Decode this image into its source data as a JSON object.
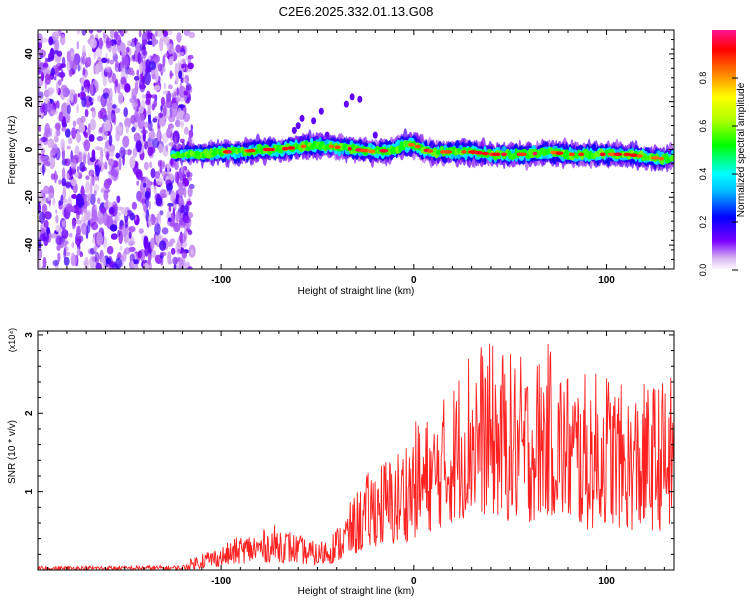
{
  "title": "C2E6.2025.332.01.13.G08",
  "chart_data": [
    {
      "type": "heatmap",
      "name": "spectrogram",
      "xlabel": "Height of straight line (km)",
      "ylabel": "Frequency (Hz)",
      "xlim": [
        -195,
        135
      ],
      "ylim": [
        -50,
        50
      ],
      "xticks": [
        -100,
        0,
        100
      ],
      "xtick_labels": [
        "-100",
        "0",
        "100"
      ],
      "yticks": [
        -40,
        -20,
        0,
        20,
        40
      ],
      "ytick_labels": [
        "-40",
        "-20",
        "0",
        "20",
        "40"
      ],
      "noise_region_x": [
        -195,
        -115
      ],
      "ridge": {
        "x": [
          -125,
          -110,
          -100,
          -90,
          -80,
          -70,
          -60,
          -50,
          -40,
          -30,
          -20,
          -10,
          -5,
          0,
          5,
          10,
          20,
          30,
          40,
          50,
          60,
          70,
          80,
          90,
          100,
          110,
          120,
          130,
          135
        ],
        "frequency_hz": [
          -2,
          -2,
          -1,
          -1,
          0,
          0,
          1,
          2,
          1,
          0,
          -1,
          0,
          2,
          2,
          0,
          -1,
          -1,
          -1,
          -2,
          -2,
          -2,
          -1,
          -2,
          -2,
          -2,
          -2,
          -3,
          -4,
          -3
        ]
      },
      "colorbar": {
        "label": "Normalized spectral amplitude",
        "range": [
          0,
          1
        ],
        "ticks": [
          0.0,
          0.2,
          0.4,
          0.6,
          0.8
        ],
        "tick_labels": [
          "0.0",
          "0.2",
          "0.4",
          "0.6",
          "0.8"
        ],
        "colors": [
          "#ffffff",
          "#d8b4f0",
          "#7b00ff",
          "#0000ff",
          "#00bfff",
          "#00ffff",
          "#00ff00",
          "#aaff00",
          "#ffff00",
          "#ff8000",
          "#ff0000",
          "#ff1493"
        ]
      }
    },
    {
      "type": "line",
      "name": "snr",
      "xlabel": "Height of straight line (km)",
      "ylabel": "SNR (10 * v/v)",
      "ylabel_multiplier": "(x10⁴)",
      "xlim": [
        -195,
        135
      ],
      "ylim": [
        0,
        3.05
      ],
      "xticks": [
        -100,
        0,
        100
      ],
      "xtick_labels": [
        "-100",
        "0",
        "100"
      ],
      "yticks": [
        1,
        2,
        3
      ],
      "ytick_labels": [
        "1",
        "2",
        "3"
      ],
      "color": "#ff2020",
      "envelope": {
        "x": [
          -195,
          -120,
          -110,
          -100,
          -90,
          -80,
          -70,
          -60,
          -50,
          -40,
          -30,
          -20,
          -10,
          0,
          10,
          20,
          30,
          40,
          50,
          60,
          70,
          80,
          90,
          100,
          110,
          120,
          135
        ],
        "upper": [
          0.05,
          0.06,
          0.25,
          0.3,
          0.45,
          0.5,
          0.6,
          0.45,
          0.35,
          0.55,
          1.0,
          1.4,
          1.5,
          1.9,
          2.0,
          2.4,
          3.0,
          2.9,
          2.8,
          2.7,
          2.9,
          2.6,
          2.5,
          2.6,
          2.3,
          2.4,
          2.5
        ],
        "lower": [
          0.0,
          0.0,
          0.02,
          0.05,
          0.08,
          0.1,
          0.1,
          0.08,
          0.05,
          0.1,
          0.2,
          0.3,
          0.3,
          0.4,
          0.5,
          0.6,
          0.7,
          0.7,
          0.6,
          0.6,
          0.7,
          0.6,
          0.5,
          0.6,
          0.5,
          0.5,
          0.5
        ]
      }
    }
  ]
}
